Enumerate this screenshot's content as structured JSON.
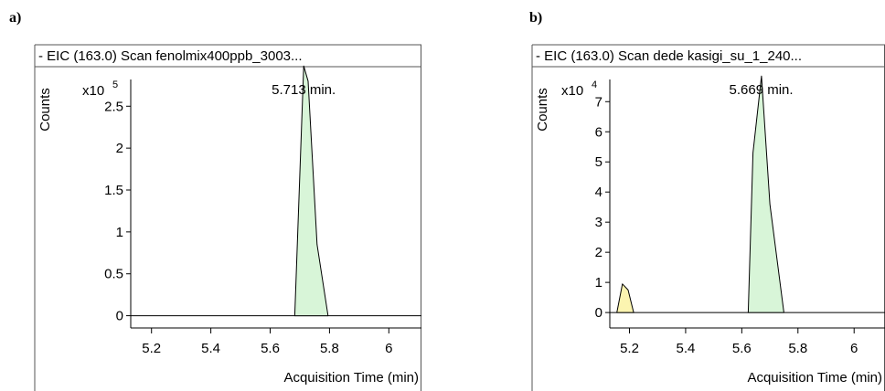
{
  "panels": [
    {
      "label": "a)"
    },
    {
      "label": "b)"
    }
  ],
  "chart_data": [
    {
      "type": "area",
      "title": "- EIC (163.0) Scan fenolmix400ppb_3003...",
      "ylabel": "Counts",
      "y_multiplier": "x10",
      "y_exponent": "5",
      "xlabel": "Acquisition Time (min)",
      "xlim": [
        5.13,
        6.11
      ],
      "ylim": [
        -0.07,
        2.95
      ],
      "x_ticks": [
        "5.2",
        "5.4",
        "5.6",
        "5.8",
        "6"
      ],
      "y_ticks": [
        "0",
        "0.5",
        "1",
        "1.5",
        "2",
        "2.5"
      ],
      "peak_label": "5.713 min.",
      "peak_label_x": 5.713,
      "series": [
        {
          "fill": "#d8f5d8",
          "x": [
            5.683,
            5.713,
            5.728,
            5.758,
            5.795
          ],
          "y": [
            0,
            2.98,
            2.8,
            0.85,
            0
          ]
        }
      ]
    },
    {
      "type": "area",
      "title": "- EIC (163.0) Scan dede kasigi_su_1_240...",
      "ylabel": "Counts",
      "y_multiplier": "x10",
      "y_exponent": "4",
      "xlabel": "Acquisition Time (min)",
      "xlim": [
        5.13,
        6.11
      ],
      "ylim": [
        -0.3,
        8.1
      ],
      "x_ticks": [
        "5.2",
        "5.4",
        "5.6",
        "5.8",
        "6"
      ],
      "y_ticks": [
        "0",
        "1",
        "2",
        "3",
        "4",
        "5",
        "6",
        "7"
      ],
      "peak_label": "5.669 min.",
      "peak_label_x": 5.669,
      "series": [
        {
          "fill": "#fbf4b0",
          "x": [
            5.155,
            5.175,
            5.195,
            5.215
          ],
          "y": [
            0,
            0.95,
            0.75,
            0
          ]
        },
        {
          "fill": "#d8f5d8",
          "x": [
            5.623,
            5.64,
            5.67,
            5.7,
            5.75
          ],
          "y": [
            0,
            5.3,
            7.85,
            3.6,
            0
          ]
        }
      ]
    }
  ]
}
